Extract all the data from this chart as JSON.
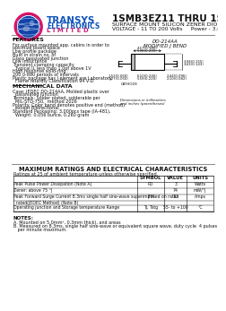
{
  "title": "1SMB3EZ11 THRU 1SMB3EZ200",
  "subtitle1": "SURFACE MOUNT SILICON ZENER DIODE",
  "subtitle2": "VOLTAGE - 11 TO 200 Volts     Power - 3.0 Watts",
  "features_title": "FEATURES",
  "features": [
    "For surface mounted app. cabins in order to",
    "optimize board space",
    "Low profile package",
    "Built in strain no. of",
    "Glass passivated junction",
    "Low inductance",
    "Transient clamping capacity",
    "  Typical IL less than 1.0pf above 1V",
    "High response solid-ring :",
    "200 0-890 periods of intervals",
    "Plastic package has J element are Laboratory",
    "  Flame retardly Classification 94 V-D"
  ],
  "mech_title": "MECHANICAL DATA",
  "mech": [
    "Case: JEDEC DO-214AA, Molded plastic over",
    "  passivated junction",
    "Terminals: Solder plated, solderable per",
    "  MIL-STD-750,  method 2026",
    "Polarity: Color band denotes positive end (method)",
    "  except Bidirectional",
    "Standard Packaging: 3,000pcs tape (IA-481),",
    "  Weight: 0.056 ounce, 0.260 gram"
  ],
  "diag_title1": "DO-214AA",
  "diag_title2": "MODIFIED J BEND",
  "table_title": "MAXIMUM RATINGS AND ELECTRICAL CHARACTERISTICS",
  "table_subtitle": "Ratings at 25 of ambient temperature unless otherwise specified.",
  "col_headers": [
    "",
    "SYMBOL",
    "VALUE",
    "UNITS"
  ],
  "rows": [
    [
      "Peak Pulse Power Dissipation (Note A)",
      "PD",
      "3",
      "Watts"
    ],
    [
      "Zener: above 75 °J",
      "",
      "74",
      "mW/°J"
    ],
    [
      "Peak Forward Surge Current 8.3ms single half sine-wave superimposed on rated",
      "IFM",
      "10",
      "Amps"
    ],
    [
      "  rated(JEDEC Method) (Note B)",
      "",
      "",
      ""
    ],
    [
      "Operating junction and Storage temperature Range",
      "Tj, Tstg",
      "55- to +100",
      "°C"
    ]
  ],
  "notes_title": "NOTES:",
  "note_a": "A. Mounted on 5.0mm², 0.3mm thick), and areas",
  "note_b": "B. Measured on 8.3ms, single half sine-wave or equivalent square wave, duty cycle  4 pulses",
  "note_b2": "   per minute maximum.",
  "bg": "#ffffff",
  "blue": "#1155bb",
  "pink": "#cc2277",
  "black": "#111111"
}
